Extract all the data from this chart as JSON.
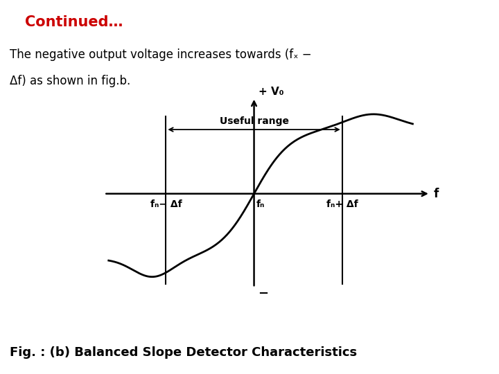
{
  "title": "Continued…",
  "title_color": "#cc0000",
  "caption": "Fig. : (b) Balanced Slope Detector Characteristics",
  "bg_color": "#ffffff",
  "curve_color": "#000000",
  "label_fc_minus": "fₙ− Δf",
  "label_fc": "fₙ",
  "label_fc_plus": "fₙ+ Δf",
  "label_f": "f",
  "label_v0": "+ V₀",
  "label_vminus": "−",
  "label_useful": "Useful range",
  "body_line1": "The negative output voltage increases towards (fₓ −",
  "body_line2": "Δf) as shown in fig.b."
}
